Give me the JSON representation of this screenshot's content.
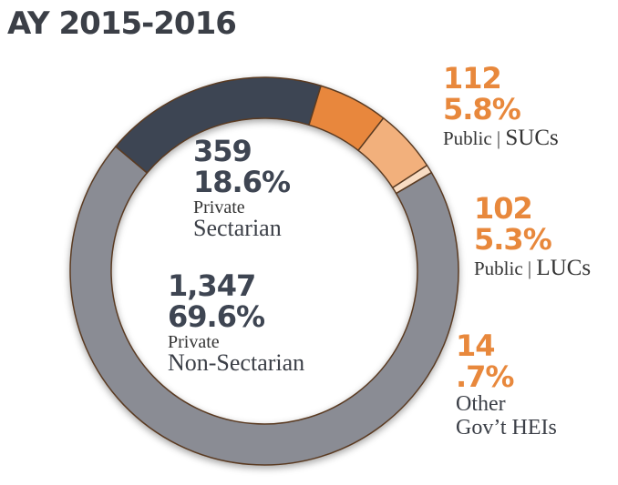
{
  "title": "AY 2015-2016",
  "chart_data": {
    "type": "pie",
    "style": "donut",
    "slices": [
      {
        "count": "359",
        "percent": "18.6%",
        "value": 18.6,
        "line1": "Private",
        "line2": "Sectarian",
        "color": "#3e4552"
      },
      {
        "count": "112",
        "percent": "5.8%",
        "value": 5.8,
        "line1": "Public",
        "line2": "SUCs",
        "color": "#e8873c"
      },
      {
        "count": "102",
        "percent": "5.3%",
        "value": 5.3,
        "line1": "Public",
        "line2": "LUCs",
        "color": "#f2b07b"
      },
      {
        "count": "14",
        "percent": ".7%",
        "value": 0.7,
        "line1": "Other",
        "line2": "Gov’t HEIs",
        "color": "#f8dcc3"
      },
      {
        "count": "1,347",
        "percent": "69.6%",
        "value": 69.6,
        "line1": "Private",
        "line2": "Non-Sectarian",
        "color": "#8a8c94"
      }
    ],
    "start_angle_deg": -50
  }
}
